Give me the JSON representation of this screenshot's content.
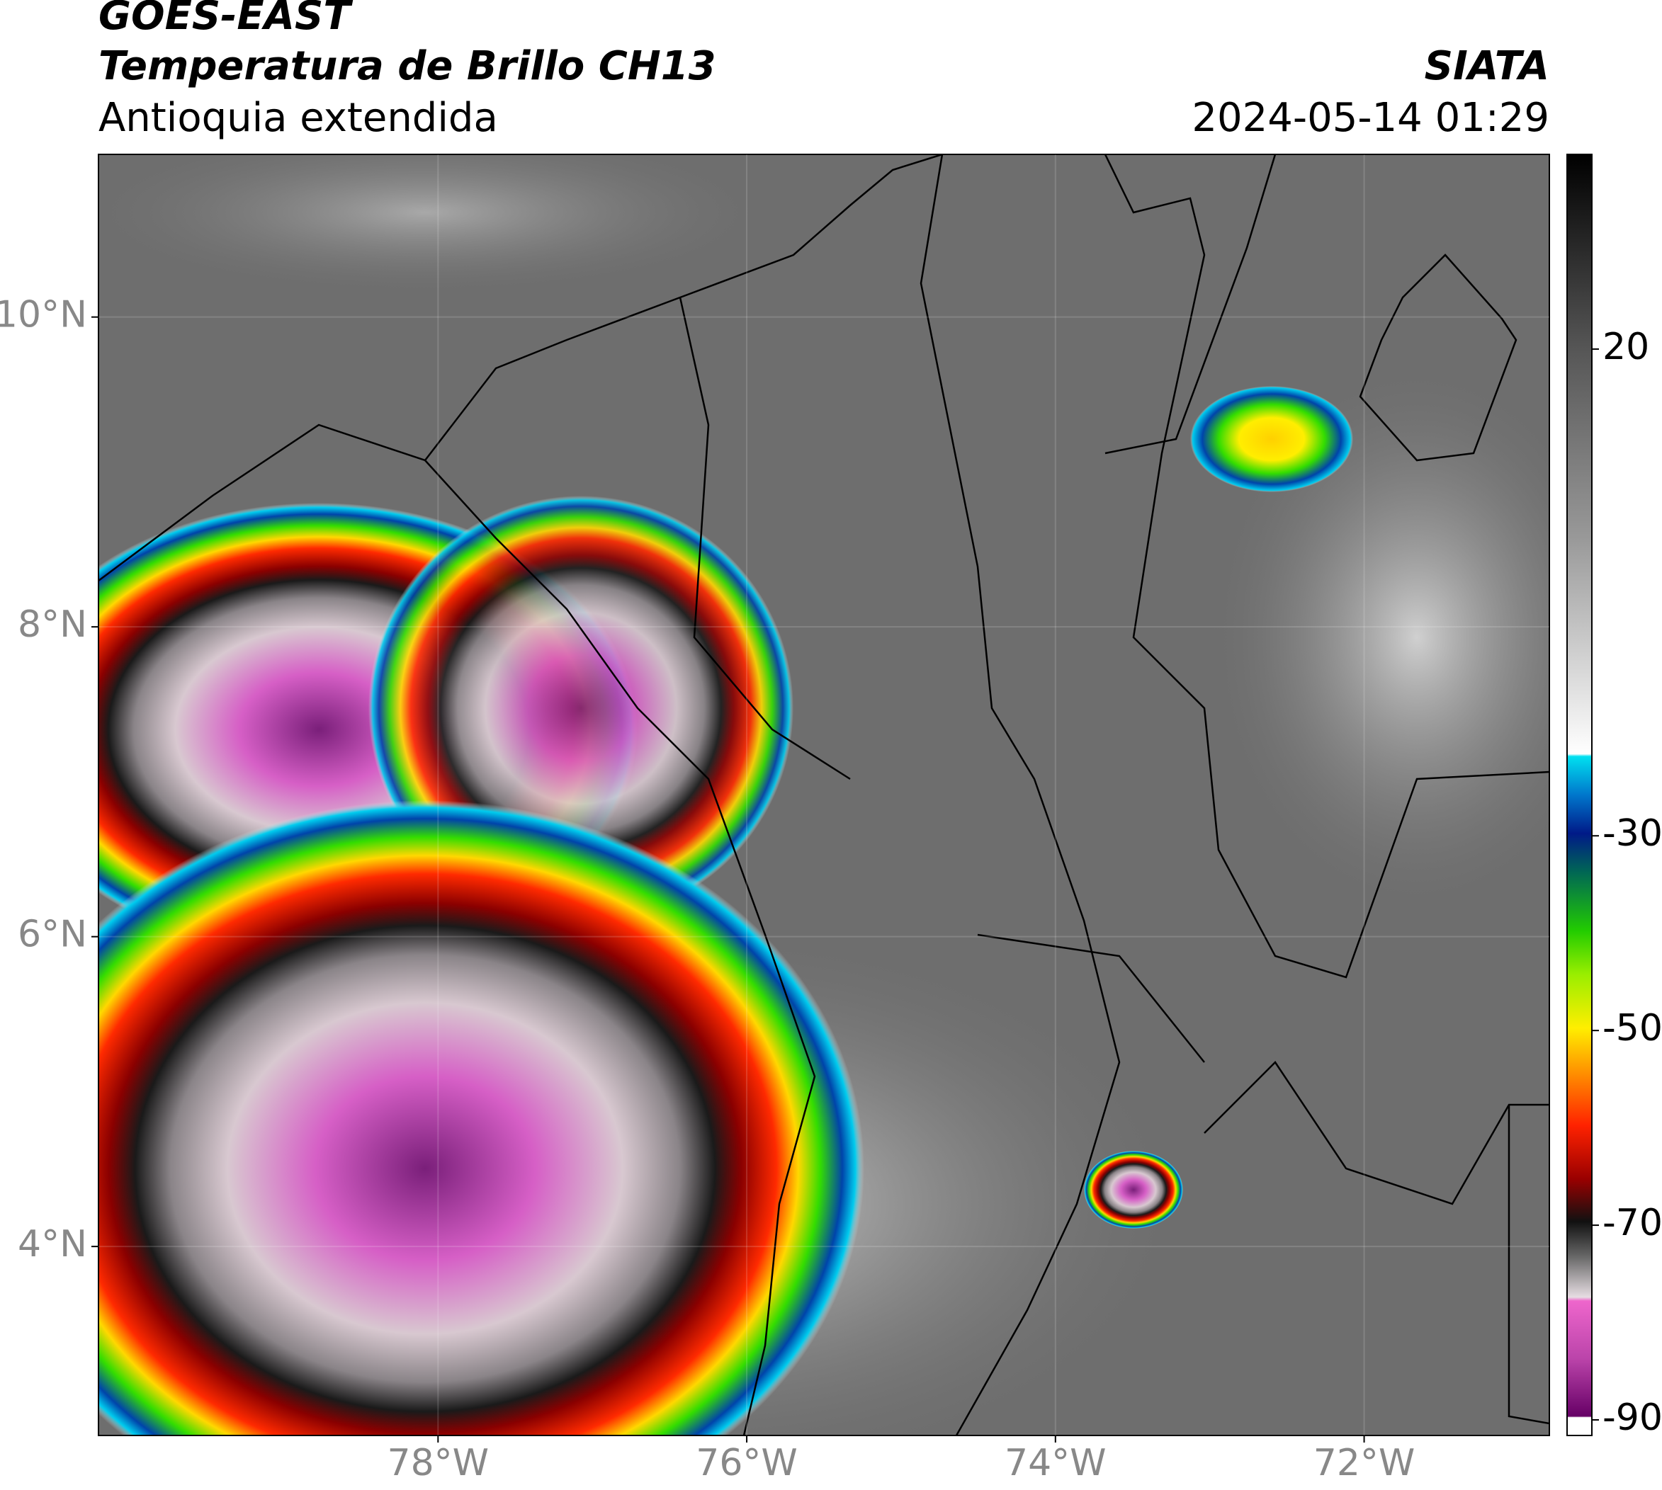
{
  "header": {
    "title": "GOES-EAST",
    "subtitle": "Temperatura de Brillo CH13",
    "region": "Antioquia extendida",
    "source": "SIATA",
    "timestamp": "2024-05-14 01:29"
  },
  "map": {
    "xlim": [
      -80.2,
      -70.8
    ],
    "ylim": [
      2.78,
      11.05
    ],
    "xticks": [
      {
        "value": -78,
        "label": "78°W"
      },
      {
        "value": -76,
        "label": "76°W"
      },
      {
        "value": -74,
        "label": "74°W"
      },
      {
        "value": -72,
        "label": "72°W"
      }
    ],
    "yticks": [
      {
        "value": 10,
        "label": "10°N"
      },
      {
        "value": 8,
        "label": "8°N"
      },
      {
        "value": 6,
        "label": "6°N"
      },
      {
        "value": 4,
        "label": "4°N"
      }
    ],
    "grid": true
  },
  "colorbar": {
    "lim": [
      -91.6,
      40
    ],
    "ticks": [
      20,
      -30,
      -50,
      -70,
      -90
    ]
  }
}
